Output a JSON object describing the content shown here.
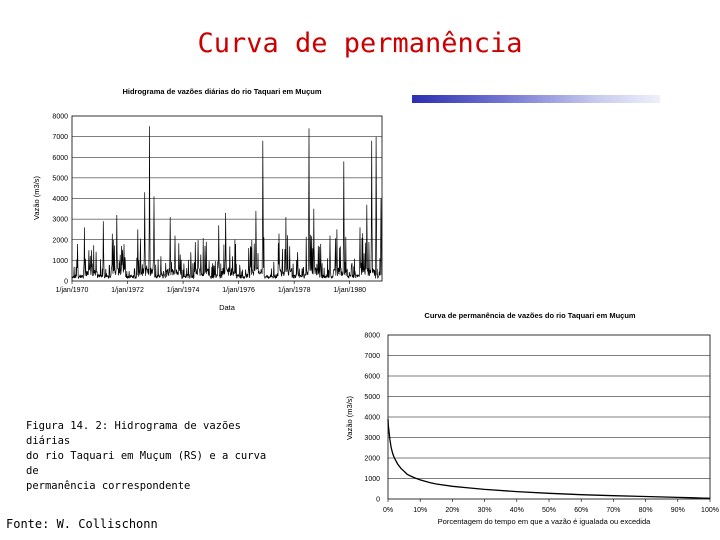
{
  "slide": {
    "title": "Curva de permanência",
    "caption_lines": [
      "Figura 14. 2: Hidrograma de vazões diárias",
      "do rio Taquari em Muçum (RS) e a curva de",
      "permanência correspondente"
    ],
    "source": "Fonte: W. Collischonn",
    "accent_color": "#cc0000",
    "bar_color": "#2b2fb0"
  },
  "chart_data": [
    {
      "type": "line",
      "title": "Hidrograma de vazões diárias do rio Taquari em Muçum",
      "xlabel": "Data",
      "ylabel": "Vazão (m3/s)",
      "ylim": [
        0,
        8000
      ],
      "yticks": [
        0,
        1000,
        2000,
        3000,
        4000,
        5000,
        6000,
        7000,
        8000
      ],
      "xlim": [
        "1970-01-01",
        "1981-03-01"
      ],
      "xtick_labels": [
        "1/jan/1970",
        "1/jan/1972",
        "1/jan/1974",
        "1/jan/1976",
        "1/jan/1978",
        "1/jan/1980"
      ],
      "grid": true,
      "series_color": "#000000",
      "peaks": [
        {
          "date": "1970-03",
          "value": 1800
        },
        {
          "date": "1970-06",
          "value": 2600
        },
        {
          "date": "1970-09",
          "value": 1500
        },
        {
          "date": "1971-02",
          "value": 2900
        },
        {
          "date": "1971-06",
          "value": 2300
        },
        {
          "date": "1971-08",
          "value": 3200
        },
        {
          "date": "1971-10",
          "value": 1700
        },
        {
          "date": "1972-05",
          "value": 2500
        },
        {
          "date": "1972-08",
          "value": 4300
        },
        {
          "date": "1972-10",
          "value": 7500
        },
        {
          "date": "1972-12",
          "value": 4100
        },
        {
          "date": "1973-03",
          "value": 1200
        },
        {
          "date": "1973-07",
          "value": 3100
        },
        {
          "date": "1973-09",
          "value": 2200
        },
        {
          "date": "1974-04",
          "value": 1400
        },
        {
          "date": "1974-07",
          "value": 2000
        },
        {
          "date": "1974-10",
          "value": 1700
        },
        {
          "date": "1975-04",
          "value": 2700
        },
        {
          "date": "1975-07",
          "value": 3300
        },
        {
          "date": "1975-10",
          "value": 1200
        },
        {
          "date": "1976-05",
          "value": 1600
        },
        {
          "date": "1976-08",
          "value": 3400
        },
        {
          "date": "1976-11",
          "value": 6800
        },
        {
          "date": "1977-06",
          "value": 2300
        },
        {
          "date": "1977-09",
          "value": 3100
        },
        {
          "date": "1978-02",
          "value": 1400
        },
        {
          "date": "1978-07",
          "value": 7400
        },
        {
          "date": "1978-09",
          "value": 3500
        },
        {
          "date": "1978-12",
          "value": 1800
        },
        {
          "date": "1979-04",
          "value": 2200
        },
        {
          "date": "1979-07",
          "value": 2500
        },
        {
          "date": "1979-10",
          "value": 5800
        },
        {
          "date": "1980-05",
          "value": 2600
        },
        {
          "date": "1980-08",
          "value": 3700
        },
        {
          "date": "1980-10",
          "value": 6800
        },
        {
          "date": "1980-12",
          "value": 7000
        },
        {
          "date": "1981-02",
          "value": 4000
        }
      ]
    },
    {
      "type": "line",
      "title": "Curva de permanência de vazões do rio Taquari em Muçum",
      "xlabel": "Porcentagem do tempo em que a vazão é igualada ou excedida",
      "ylabel": "Vazão (m3/s)",
      "ylim": [
        0,
        8000
      ],
      "yticks": [
        0,
        1000,
        2000,
        3000,
        4000,
        5000,
        6000,
        7000,
        8000
      ],
      "xlim": [
        0,
        100
      ],
      "xticks": [
        0,
        10,
        20,
        30,
        40,
        50,
        60,
        70,
        80,
        90,
        100
      ],
      "xtick_labels": [
        "0%",
        "10%",
        "20%",
        "30%",
        "40%",
        "50%",
        "60%",
        "70%",
        "80%",
        "90%",
        "100%"
      ],
      "grid": true,
      "series_color": "#000000",
      "x": [
        0,
        0.1,
        0.3,
        0.6,
        1,
        1.5,
        2,
        3,
        4,
        5,
        6,
        8,
        10,
        13,
        15,
        20,
        25,
        30,
        40,
        50,
        60,
        70,
        80,
        90,
        95,
        98,
        100
      ],
      "y": [
        3900,
        3600,
        3300,
        2900,
        2500,
        2200,
        2000,
        1700,
        1500,
        1350,
        1200,
        1050,
        930,
        800,
        730,
        620,
        540,
        470,
        360,
        280,
        210,
        160,
        120,
        80,
        60,
        45,
        35
      ]
    }
  ]
}
